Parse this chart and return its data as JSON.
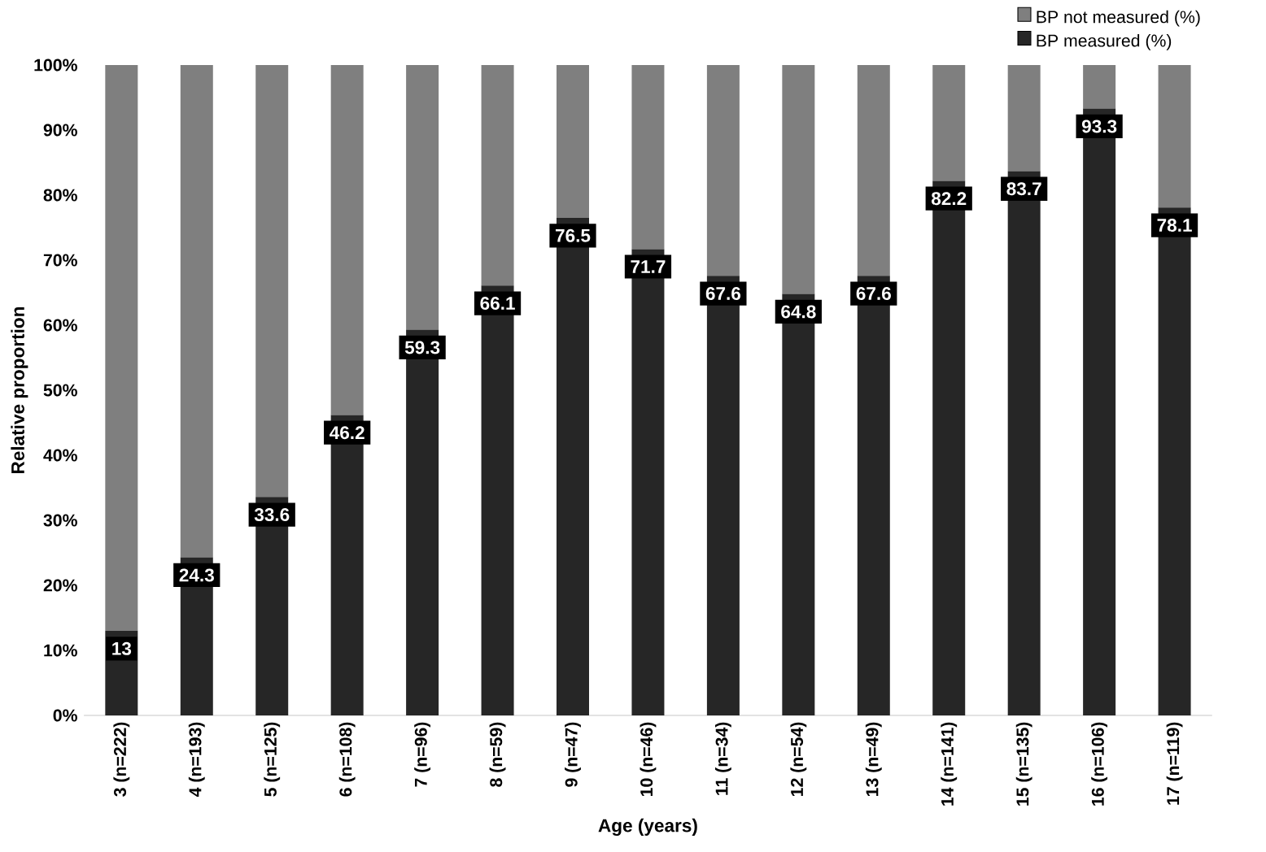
{
  "chart_data": {
    "type": "bar",
    "stacked": true,
    "xlabel": "Age (years)",
    "ylabel": "Relative proportion",
    "categories": [
      "3 (n=222)",
      "4 (n=193)",
      "5 (n=125)",
      "6 (n=108)",
      "7 (n=96)",
      "8 (n=59)",
      "9 (n=47)",
      "10 (n=46)",
      "11 (n=34)",
      "12 (n=54)",
      "13 (n=49)",
      "14 (n=141)",
      "15 (n=135)",
      "16 (n=106)",
      "17 (n=119)"
    ],
    "series": [
      {
        "name": "BP measured (%)",
        "color": "#262626",
        "values": [
          13,
          24.3,
          33.6,
          46.2,
          59.3,
          66.1,
          76.5,
          71.7,
          67.6,
          64.8,
          67.6,
          82.2,
          83.7,
          93.3,
          78.1
        ],
        "value_labels": [
          "13",
          "24.3",
          "33.6",
          "46.2",
          "59.3",
          "66.1",
          "76.5",
          "71.7",
          "67.6",
          "64.8",
          "67.6",
          "82.2",
          "83.7",
          "93.3",
          "78.1"
        ]
      },
      {
        "name": "BP not measured (%)",
        "color": "#7f7f7f",
        "values": [
          87,
          75.7,
          66.4,
          53.8,
          40.7,
          33.9,
          23.5,
          28.3,
          32.4,
          35.2,
          32.4,
          17.8,
          16.3,
          6.7,
          21.9
        ]
      }
    ],
    "ylim": [
      0,
      100
    ],
    "yticks": [
      {
        "value": 0,
        "label": "0%"
      },
      {
        "value": 10,
        "label": "10%"
      },
      {
        "value": 20,
        "label": "20%"
      },
      {
        "value": 30,
        "label": "30%"
      },
      {
        "value": 40,
        "label": "40%"
      },
      {
        "value": 50,
        "label": "50%"
      },
      {
        "value": 60,
        "label": "60%"
      },
      {
        "value": 70,
        "label": "70%"
      },
      {
        "value": 80,
        "label": "80%"
      },
      {
        "value": 90,
        "label": "90%"
      },
      {
        "value": 100,
        "label": "100%"
      }
    ],
    "legend": "top right",
    "grid": false
  }
}
